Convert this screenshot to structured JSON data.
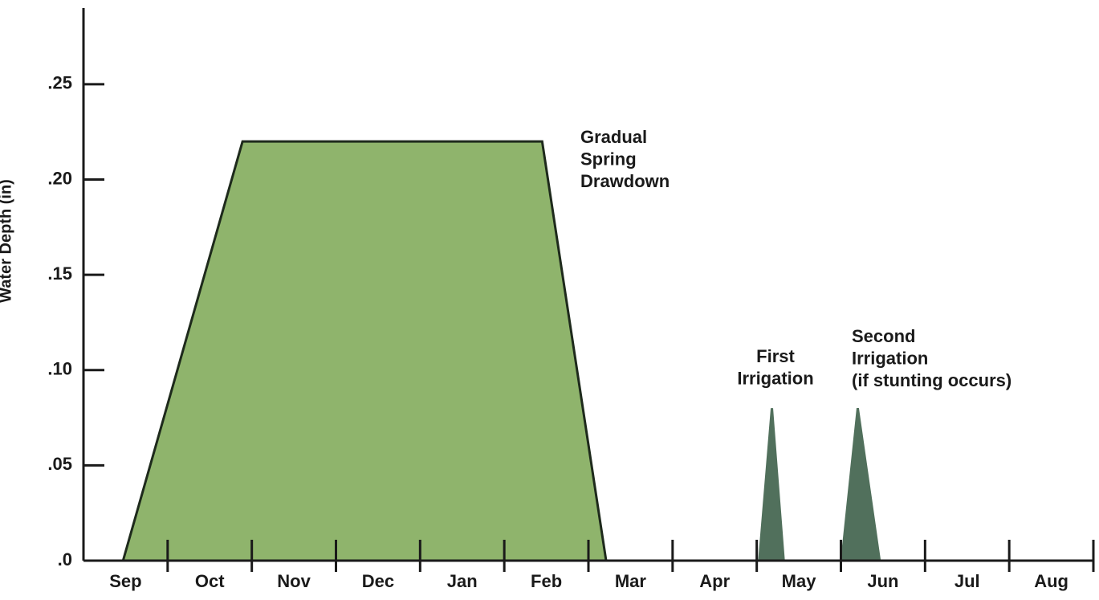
{
  "chart_data": {
    "type": "area",
    "ylabel": "Water Depth (in)",
    "categories": [
      "Sep",
      "Oct",
      "Nov",
      "Dec",
      "Jan",
      "Feb",
      "Mar",
      "Apr",
      "May",
      "Jun",
      "Jul",
      "Aug"
    ],
    "xlim": [
      0,
      12
    ],
    "xticks": [
      1,
      2,
      3,
      4,
      5,
      6,
      7,
      8,
      9,
      10,
      11,
      12
    ],
    "ylim": [
      0,
      0.29
    ],
    "yticks": [
      {
        "value": 0,
        "label": ".0"
      },
      {
        "value": 0.05,
        "label": ".05"
      },
      {
        "value": 0.1,
        "label": ".10"
      },
      {
        "value": 0.15,
        "label": ".15"
      },
      {
        "value": 0.2,
        "label": ".20"
      },
      {
        "value": 0.25,
        "label": ".25"
      }
    ],
    "series": [
      {
        "label": [
          "Gradual",
          "Spring",
          "Drawdown"
        ],
        "color": "#8fb46c",
        "stroke": "#1e2a1c",
        "x": [
          0.47,
          1.89,
          5.45,
          6.21
        ],
        "values": [
          0,
          0.22,
          0.22,
          0
        ]
      },
      {
        "label": [
          "First",
          "Irrigation"
        ],
        "color": "#51705c",
        "stroke": "#51705c",
        "x": [
          8.03,
          8.18,
          8.32
        ],
        "values": [
          0,
          0.08,
          0
        ]
      },
      {
        "label": [
          "Second",
          "Irrigation",
          "(if stunting occurs)"
        ],
        "color": "#51705c",
        "stroke": "#51705c",
        "x": [
          9.01,
          9.2,
          9.46
        ],
        "values": [
          0,
          0.08,
          0
        ]
      }
    ]
  }
}
